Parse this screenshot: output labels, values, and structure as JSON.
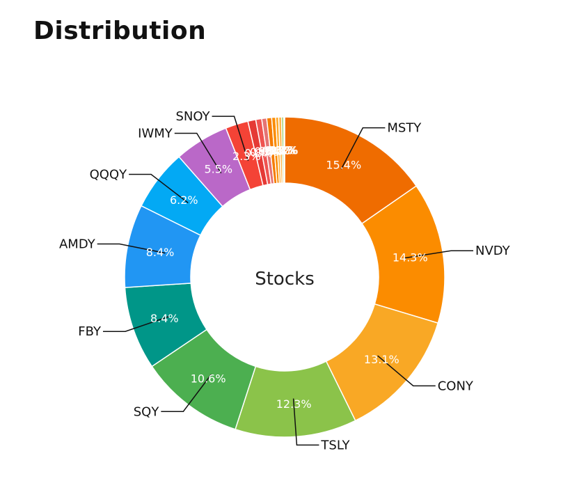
{
  "page": {
    "title": "Distribution"
  },
  "chart_data": {
    "type": "pie",
    "variant": "donut",
    "title": "Distribution",
    "center_label": "Stocks",
    "unit": "%",
    "slices": [
      {
        "name": "MSTY",
        "value": 15.4,
        "color": "#EF6C00",
        "show_pct": true,
        "show_name": true
      },
      {
        "name": "NVDY",
        "value": 14.3,
        "color": "#FB8C00",
        "show_pct": true,
        "show_name": true
      },
      {
        "name": "CONY",
        "value": 13.1,
        "color": "#F9A825",
        "show_pct": true,
        "show_name": true
      },
      {
        "name": "TSLY",
        "value": 12.3,
        "color": "#8BC34A",
        "show_pct": true,
        "show_name": true
      },
      {
        "name": "SQY",
        "value": 10.6,
        "color": "#4CAF50",
        "show_pct": true,
        "show_name": true
      },
      {
        "name": "FBY",
        "value": 8.4,
        "color": "#009688",
        "show_pct": true,
        "show_name": true
      },
      {
        "name": "AMDY",
        "value": 8.4,
        "color": "#2196F3",
        "show_pct": true,
        "show_name": true
      },
      {
        "name": "QQQY",
        "value": 6.2,
        "color": "#03A9F4",
        "show_pct": true,
        "show_name": true
      },
      {
        "name": "IWMY",
        "value": 5.5,
        "color": "#BA68C8",
        "show_pct": true,
        "show_name": true
      },
      {
        "name": "SNOY",
        "value": 2.3,
        "color": "#F44336",
        "show_pct": true,
        "show_name": true
      },
      {
        "name": "",
        "value": 0.8,
        "color": "#E53935",
        "show_pct": true,
        "show_name": false
      },
      {
        "name": "",
        "value": 0.6,
        "color": "#EF5350",
        "show_pct": true,
        "show_name": false
      },
      {
        "name": "",
        "value": 0.5,
        "color": "#E57373",
        "show_pct": true,
        "show_name": false
      },
      {
        "name": "",
        "value": 0.5,
        "color": "#F57C00",
        "show_pct": true,
        "show_name": false
      },
      {
        "name": "",
        "value": 0.4,
        "color": "#FB8C00",
        "show_pct": true,
        "show_name": false
      },
      {
        "name": "",
        "value": 0.3,
        "color": "#FFA726",
        "show_pct": true,
        "show_name": false
      },
      {
        "name": "",
        "value": 0.3,
        "color": "#FFB74D",
        "show_pct": true,
        "show_name": false
      },
      {
        "name": "",
        "value": 0.2,
        "color": "#8BC34A",
        "show_pct": true,
        "show_name": false
      },
      {
        "name": "",
        "value": 0.1,
        "color": "#26A69A",
        "show_pct": true,
        "show_name": false
      }
    ]
  }
}
